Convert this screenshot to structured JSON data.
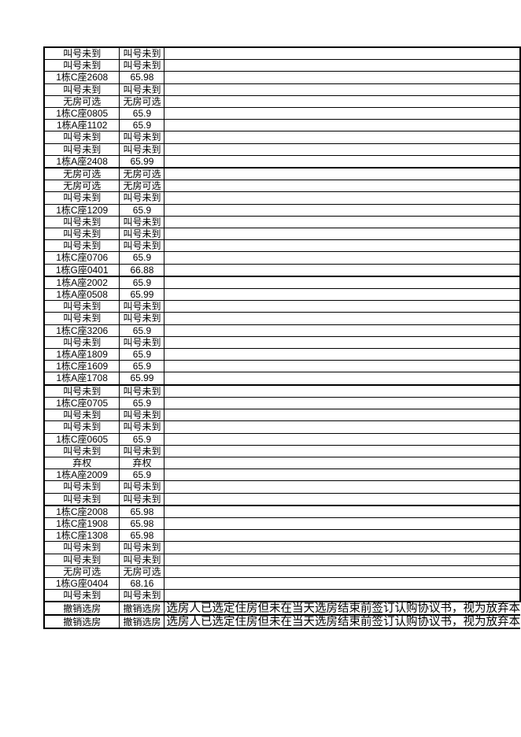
{
  "page": {
    "background_color": "#ffffff",
    "text_color": "#000000",
    "border_color": "#000000"
  },
  "table": {
    "rows": [
      {
        "c1": "叫号未到",
        "c2": "叫号未到",
        "c3": ""
      },
      {
        "c1": "叫号未到",
        "c2": "叫号未到",
        "c3": ""
      },
      {
        "c1": "1栋C座2608",
        "c2": "65.98",
        "c3": ""
      },
      {
        "c1": "叫号未到",
        "c2": "叫号未到",
        "c3": ""
      },
      {
        "c1": "无房可选",
        "c2": "无房可选",
        "c3": ""
      },
      {
        "c1": "1栋C座0805",
        "c2": "65.9",
        "c3": ""
      },
      {
        "c1": "1栋A座1102",
        "c2": "65.9",
        "c3": ""
      },
      {
        "c1": "叫号未到",
        "c2": "叫号未到",
        "c3": ""
      },
      {
        "c1": "叫号未到",
        "c2": "叫号未到",
        "c3": ""
      },
      {
        "c1": "1栋A座2408",
        "c2": "65.99",
        "c3": ""
      },
      {
        "c1": "无房可选",
        "c2": "无房可选",
        "c3": "",
        "sep": true
      },
      {
        "c1": "无房可选",
        "c2": "无房可选",
        "c3": ""
      },
      {
        "c1": "叫号未到",
        "c2": "叫号未到",
        "c3": ""
      },
      {
        "c1": "1栋C座1209",
        "c2": "65.9",
        "c3": ""
      },
      {
        "c1": "叫号未到",
        "c2": "叫号未到",
        "c3": ""
      },
      {
        "c1": "叫号未到",
        "c2": "叫号未到",
        "c3": ""
      },
      {
        "c1": "叫号未到",
        "c2": "叫号未到",
        "c3": ""
      },
      {
        "c1": "1栋C座0706",
        "c2": "65.9",
        "c3": ""
      },
      {
        "c1": "1栋G座0401",
        "c2": "66.88",
        "c3": ""
      },
      {
        "c1": "1栋A座2002",
        "c2": "65.9",
        "c3": "",
        "sep": true
      },
      {
        "c1": "1栋A座0508",
        "c2": "65.99",
        "c3": ""
      },
      {
        "c1": "叫号未到",
        "c2": "叫号未到",
        "c3": ""
      },
      {
        "c1": "叫号未到",
        "c2": "叫号未到",
        "c3": ""
      },
      {
        "c1": "1栋C座3206",
        "c2": "65.9",
        "c3": ""
      },
      {
        "c1": "叫号未到",
        "c2": "叫号未到",
        "c3": ""
      },
      {
        "c1": "1栋A座1809",
        "c2": "65.9",
        "c3": ""
      },
      {
        "c1": "1栋C座1609",
        "c2": "65.9",
        "c3": ""
      },
      {
        "c1": "1栋A座1708",
        "c2": "65.99",
        "c3": ""
      },
      {
        "c1": "叫号未到",
        "c2": "叫号未到",
        "c3": "",
        "sep": true
      },
      {
        "c1": "1栋C座0705",
        "c2": "65.9",
        "c3": ""
      },
      {
        "c1": "叫号未到",
        "c2": "叫号未到",
        "c3": ""
      },
      {
        "c1": "叫号未到",
        "c2": "叫号未到",
        "c3": ""
      },
      {
        "c1": "1栋C座0605",
        "c2": "65.9",
        "c3": ""
      },
      {
        "c1": "叫号未到",
        "c2": "叫号未到",
        "c3": ""
      },
      {
        "c1": "弃权",
        "c2": "弃权",
        "c3": ""
      },
      {
        "c1": "1栋A座2009",
        "c2": "65.9",
        "c3": ""
      },
      {
        "c1": "叫号未到",
        "c2": "叫号未到",
        "c3": ""
      },
      {
        "c1": "叫号未到",
        "c2": "叫号未到",
        "c3": ""
      },
      {
        "c1": "1栋C座2008",
        "c2": "65.98",
        "c3": "",
        "sep": true
      },
      {
        "c1": "1栋C座1908",
        "c2": "65.98",
        "c3": ""
      },
      {
        "c1": "1栋C座1308",
        "c2": "65.98",
        "c3": ""
      },
      {
        "c1": "叫号未到",
        "c2": "叫号未到",
        "c3": ""
      },
      {
        "c1": "叫号未到",
        "c2": "叫号未到",
        "c3": ""
      },
      {
        "c1": "无房可选",
        "c2": "无房可选",
        "c3": ""
      },
      {
        "c1": "1栋G座0404",
        "c2": "68.16",
        "c3": ""
      },
      {
        "c1": "叫号未到",
        "c2": "叫号未到",
        "c3": ""
      },
      {
        "c1": "撤销选房",
        "c2": "撤销选房",
        "c3": "选房人已选定住房但未在当天选房结束前签订认购协议书，视为放弃本",
        "sep": true,
        "note": true
      },
      {
        "c1": "撤销选房",
        "c2": "撤销选房",
        "c3": "选房人已选定住房但未在当天选房结束前签订认购协议书，视为放弃本",
        "sep": true,
        "note": true
      }
    ]
  }
}
